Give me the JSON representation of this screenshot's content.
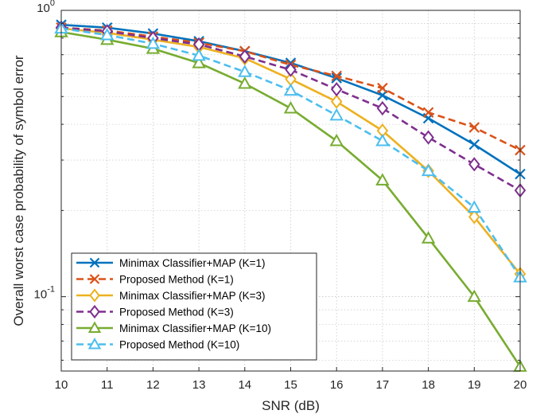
{
  "chart_data": {
    "type": "line",
    "title": "",
    "xlabel": "SNR (dB)",
    "ylabel": "Overall worst case probability of symbol error",
    "xscale": "linear",
    "yscale": "log",
    "xlim": [
      10,
      20
    ],
    "ylim": [
      0.055,
      1
    ],
    "grid": true,
    "legend_position": "bottom-left",
    "x": [
      10,
      11,
      12,
      13,
      14,
      15,
      16,
      17,
      18,
      19,
      20
    ],
    "x_tick_labels": [
      "10",
      "11",
      "12",
      "13",
      "14",
      "15",
      "16",
      "17",
      "18",
      "19",
      "20"
    ],
    "y_tick_labels": [
      {
        "value": 1,
        "base": "10",
        "exp": "0"
      },
      {
        "value": 0.1,
        "base": "10",
        "exp": "-1"
      }
    ],
    "series": [
      {
        "name": "Minimax Classifier+MAP (K=1)",
        "color": "#0072BD",
        "dash": "solid",
        "marker": "x",
        "values": [
          0.89,
          0.87,
          0.83,
          0.78,
          0.72,
          0.655,
          0.58,
          0.505,
          0.42,
          0.34,
          0.268
        ]
      },
      {
        "name": "Proposed Method (K=1)",
        "color": "#D95319",
        "dash": "dashed",
        "marker": "x",
        "values": [
          0.87,
          0.85,
          0.81,
          0.77,
          0.72,
          0.645,
          0.59,
          0.535,
          0.44,
          0.39,
          0.325
        ]
      },
      {
        "name": "Minimax Classifier+MAP (K=3)",
        "color": "#EDB120",
        "dash": "solid",
        "marker": "diamond",
        "values": [
          0.865,
          0.835,
          0.79,
          0.745,
          0.68,
          0.575,
          0.48,
          0.38,
          0.275,
          0.19,
          0.12
        ]
      },
      {
        "name": "Proposed Method (K=3)",
        "color": "#7E2F8E",
        "dash": "dashed",
        "marker": "diamond",
        "values": [
          0.87,
          0.845,
          0.8,
          0.76,
          0.69,
          0.62,
          0.53,
          0.455,
          0.36,
          0.29,
          0.235
        ]
      },
      {
        "name": "Minimax Classifier+MAP (K=10)",
        "color": "#77AC30",
        "dash": "solid",
        "marker": "triangle",
        "values": [
          0.84,
          0.79,
          0.735,
          0.655,
          0.555,
          0.455,
          0.35,
          0.255,
          0.16,
          0.1,
          0.057
        ]
      },
      {
        "name": "Proposed Method (K=10)",
        "color": "#4DBEEE",
        "dash": "dashed",
        "marker": "triangle",
        "values": [
          0.865,
          0.82,
          0.765,
          0.695,
          0.61,
          0.525,
          0.43,
          0.35,
          0.275,
          0.205,
          0.117
        ]
      }
    ]
  }
}
